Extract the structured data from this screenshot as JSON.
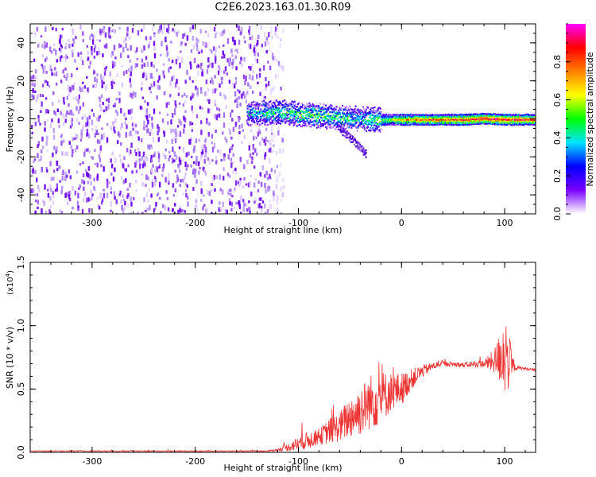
{
  "title": "C2E6.2023.163.01.30.R09",
  "chart_data": [
    {
      "type": "heatmap",
      "xlabel": "Height of straight line (km)",
      "ylabel": "Frequency (Hz)",
      "xlim": [
        -360,
        130
      ],
      "ylim": [
        -50,
        50
      ],
      "x_ticks": [
        -300,
        -200,
        -100,
        0,
        100
      ],
      "x_tick_labels": [
        "-300",
        "-200",
        "-100",
        "0",
        "100"
      ],
      "y_ticks": [
        -40,
        -20,
        0,
        20,
        40
      ],
      "y_tick_labels": [
        "-40",
        "-20",
        "0",
        "20",
        "40"
      ],
      "colorbar": {
        "label": "Normalized spectral amplitude",
        "range": [
          0,
          1
        ],
        "ticks": [
          0,
          0.2,
          0.4,
          0.6,
          0.8
        ],
        "tick_labels": [
          "0.0",
          "0.2",
          "0.4",
          "0.6",
          "0.8"
        ],
        "colors": [
          "#ffffff",
          "#7a00ff",
          "#0000ff",
          "#00e5ff",
          "#00ff00",
          "#ffff00",
          "#ff8000",
          "#ff0000",
          "#ff00ff"
        ]
      },
      "features": {
        "noise_region_x": [
          -360,
          -125
        ],
        "signal_track": [
          {
            "x": -150,
            "f": 3,
            "amp": 0.35
          },
          {
            "x": -120,
            "f": 4,
            "amp": 0.45
          },
          {
            "x": -100,
            "f": 3,
            "amp": 0.5
          },
          {
            "x": -80,
            "f": 2,
            "amp": 0.5
          },
          {
            "x": -60,
            "f": 1,
            "amp": 0.45
          },
          {
            "x": -40,
            "f": 0.5,
            "amp": 0.4
          },
          {
            "x": -20,
            "f": 0,
            "amp": 0.5
          },
          {
            "x": 0,
            "f": 0,
            "amp": 0.7
          },
          {
            "x": 20,
            "f": 0,
            "amp": 0.8
          },
          {
            "x": 40,
            "f": 0,
            "amp": 0.8
          },
          {
            "x": 60,
            "f": 0,
            "amp": 0.85
          },
          {
            "x": 80,
            "f": 0.5,
            "amp": 0.9
          },
          {
            "x": 100,
            "f": 0,
            "amp": 0.9
          },
          {
            "x": 130,
            "f": 0,
            "amp": 0.85
          }
        ],
        "branch_track": [
          {
            "x": -60,
            "f": -5
          },
          {
            "x": -45,
            "f": -12
          },
          {
            "x": -35,
            "f": -18
          }
        ]
      }
    },
    {
      "type": "line",
      "xlabel": "Height of straight line (km)",
      "ylabel": "SNR (10 * v/v)",
      "y_multiplier": "(x10",
      "y_multiplier_exp": "4",
      "y_multiplier_close": ")",
      "xlim": [
        -360,
        130
      ],
      "ylim": [
        0,
        1.5
      ],
      "x_ticks": [
        -300,
        -200,
        -100,
        0,
        100
      ],
      "x_tick_labels": [
        "-300",
        "-200",
        "-100",
        "0",
        "100"
      ],
      "y_ticks": [
        0,
        0.5,
        1.0,
        1.5
      ],
      "y_tick_labels": [
        "0.0",
        "0.5",
        "1.0",
        "1.5"
      ],
      "series": [
        {
          "color": "#ee3333",
          "x": [
            -360,
            -300,
            -200,
            -130,
            -120,
            -110,
            -100,
            -90,
            -80,
            -70,
            -60,
            -50,
            -40,
            -30,
            -20,
            -10,
            0,
            10,
            20,
            30,
            40,
            60,
            80,
            90,
            95,
            100,
            105,
            110,
            120,
            130
          ],
          "y": [
            0.01,
            0.01,
            0.01,
            0.01,
            0.02,
            0.04,
            0.07,
            0.1,
            0.12,
            0.17,
            0.2,
            0.28,
            0.33,
            0.4,
            0.43,
            0.48,
            0.5,
            0.58,
            0.64,
            0.68,
            0.7,
            0.69,
            0.7,
            0.72,
            0.75,
            0.8,
            0.7,
            0.67,
            0.66,
            0.65
          ],
          "noise": [
            0.004,
            0.004,
            0.004,
            0.004,
            0.01,
            0.03,
            0.06,
            0.07,
            0.06,
            0.1,
            0.12,
            0.17,
            0.2,
            0.22,
            0.22,
            0.15,
            0.13,
            0.08,
            0.05,
            0.03,
            0.02,
            0.02,
            0.03,
            0.1,
            0.2,
            0.35,
            0.2,
            0.02,
            0.01,
            0.01
          ]
        }
      ]
    }
  ]
}
